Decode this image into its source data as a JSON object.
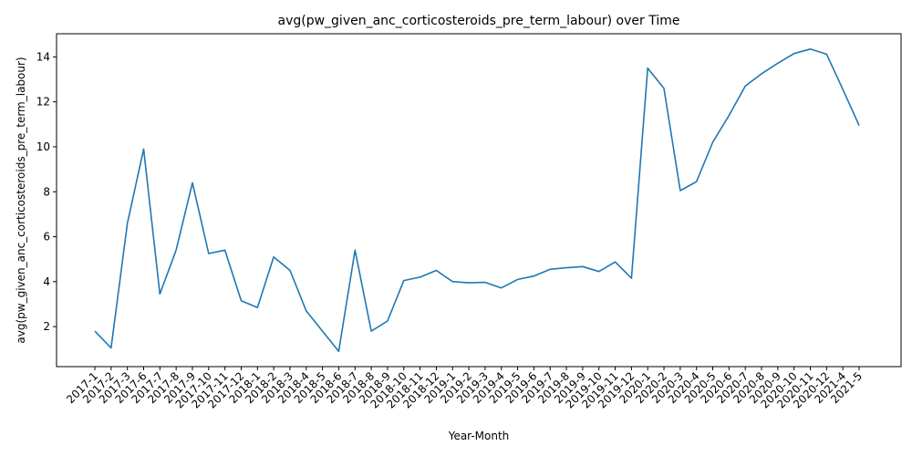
{
  "chart_data": {
    "type": "line",
    "title": "avg(pw_given_anc_corticosteroids_pre_term_labour) over Time",
    "xlabel": "Year-Month",
    "ylabel": "avg(pw_given_anc_corticosteroids_pre_term_labour)",
    "categories": [
      "2017-1",
      "2017-2",
      "2017-3",
      "2017-6",
      "2017-7",
      "2017-8",
      "2017-9",
      "2017-10",
      "2017-11",
      "2017-12",
      "2018-1",
      "2018-2",
      "2018-3",
      "2018-4",
      "2018-5",
      "2018-6",
      "2018-7",
      "2018-8",
      "2018-9",
      "2018-10",
      "2018-11",
      "2018-12",
      "2019-1",
      "2019-2",
      "2019-3",
      "2019-4",
      "2019-5",
      "2019-6",
      "2019-7",
      "2019-8",
      "2019-9",
      "2019-10",
      "2019-11",
      "2019-12",
      "2020-1",
      "2020-2",
      "2020-3",
      "2020-4",
      "2020-5",
      "2020-6",
      "2020-7",
      "2020-8",
      "2020-9",
      "2020-10",
      "2020-11",
      "2020-12",
      "2021-4",
      "2021-5"
    ],
    "series": [
      {
        "values": [
          1.8,
          1.05,
          6.6,
          9.9,
          3.45,
          5.4,
          8.4,
          5.25,
          5.4,
          3.15,
          2.85,
          5.1,
          4.5,
          2.7,
          1.8,
          0.9,
          5.4,
          1.8,
          2.25,
          4.05,
          4.2,
          4.5,
          4.0,
          3.95,
          3.97,
          3.72,
          4.1,
          4.25,
          4.55,
          4.62,
          4.67,
          4.45,
          4.88,
          4.15,
          13.5,
          12.6,
          8.05,
          8.45,
          10.2,
          11.4,
          12.7,
          13.25,
          13.72,
          14.15,
          14.35,
          14.12,
          12.55,
          10.95
        ],
        "color": "#1f77b4"
      }
    ],
    "ylim": [
      0.22,
      15.03
    ],
    "yticks": [
      2,
      4,
      6,
      8,
      10,
      12,
      14
    ],
    "grid": false,
    "legend": "none"
  }
}
